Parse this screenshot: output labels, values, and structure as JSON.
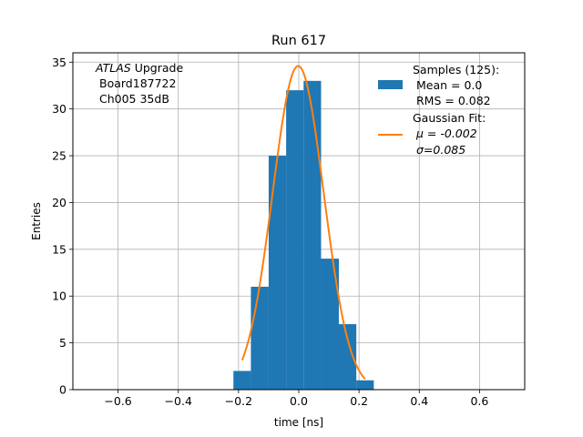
{
  "chart_data": {
    "type": "bar",
    "title": "Run 617",
    "xlabel": "time [ns]",
    "ylabel": "Entries",
    "xlim": [
      -0.75,
      0.75
    ],
    "ylim": [
      0,
      36
    ],
    "grid": true,
    "xticks": [
      -0.6,
      -0.4,
      -0.2,
      0.0,
      0.2,
      0.4,
      0.6
    ],
    "yticks": [
      0,
      5,
      10,
      15,
      20,
      25,
      30,
      35
    ],
    "xtick_labels": [
      "−0.6",
      "−0.4",
      "−0.2",
      "0.0",
      "0.2",
      "0.4",
      "0.6"
    ],
    "ytick_labels": [
      "0",
      "5",
      "10",
      "15",
      "20",
      "25",
      "30",
      "35"
    ],
    "annotation": {
      "italic": "ATLAS",
      "rest": " Upgrade",
      "line2": "Board187722",
      "line3": "Ch005 35dB"
    },
    "histogram": {
      "name": "Samples (125):",
      "mean_label": "Mean = 0.0",
      "rms_label": "RMS = 0.082",
      "color": "#1f77b4",
      "bin_edges": [
        -0.217,
        -0.159,
        -0.1,
        -0.042,
        0.016,
        0.074,
        0.133,
        0.191,
        0.249
      ],
      "counts": [
        2,
        11,
        25,
        32,
        33,
        14,
        7,
        1
      ]
    },
    "fit": {
      "name": "Gaussian Fit:",
      "mu_label": "μ = -0.002",
      "sigma_label": "σ=0.085",
      "color": "#ff7f0e",
      "mu": -0.002,
      "sigma": 0.085,
      "amplitude": 34.6,
      "x_range": [
        -0.188,
        0.22
      ]
    },
    "legend_position": "upper right"
  }
}
